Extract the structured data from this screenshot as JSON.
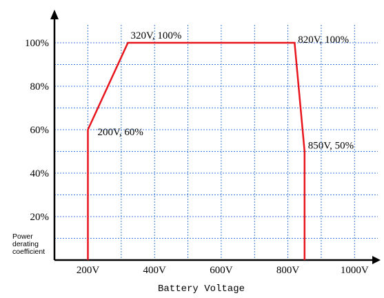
{
  "chart_data": {
    "type": "line",
    "xlabel": "Battery Voltage",
    "ylabel": [
      "Power",
      "derating",
      "coefficient"
    ],
    "x_ticks": [
      {
        "value": 200,
        "label": "200V"
      },
      {
        "value": 400,
        "label": "400V"
      },
      {
        "value": 600,
        "label": "600V"
      },
      {
        "value": 800,
        "label": "800V"
      },
      {
        "value": 1000,
        "label": "1000V"
      }
    ],
    "y_ticks": [
      {
        "value": 20,
        "label": "20%"
      },
      {
        "value": 40,
        "label": "40%"
      },
      {
        "value": 60,
        "label": "60%"
      },
      {
        "value": 80,
        "label": "80%"
      },
      {
        "value": 100,
        "label": "100%"
      }
    ],
    "xlim": [
      100,
      1050
    ],
    "ylim": [
      0,
      110
    ],
    "grid": true,
    "series": [
      {
        "color": "#e8141c",
        "points": [
          {
            "x": 200,
            "y": 0
          },
          {
            "x": 200,
            "y": 60
          },
          {
            "x": 320,
            "y": 100
          },
          {
            "x": 820,
            "y": 100
          },
          {
            "x": 850,
            "y": 50
          },
          {
            "x": 850,
            "y": 0
          }
        ]
      }
    ],
    "annotations": [
      {
        "text": "200V, 60%",
        "x": 200,
        "y": 60
      },
      {
        "text": "320V, 100%",
        "x": 320,
        "y": 100
      },
      {
        "text": "820V, 100%",
        "x": 820,
        "y": 100
      },
      {
        "text": "850V, 50%",
        "x": 850,
        "y": 50
      }
    ],
    "grid_color": "#3a7bd5",
    "axis_color": "#000000"
  }
}
